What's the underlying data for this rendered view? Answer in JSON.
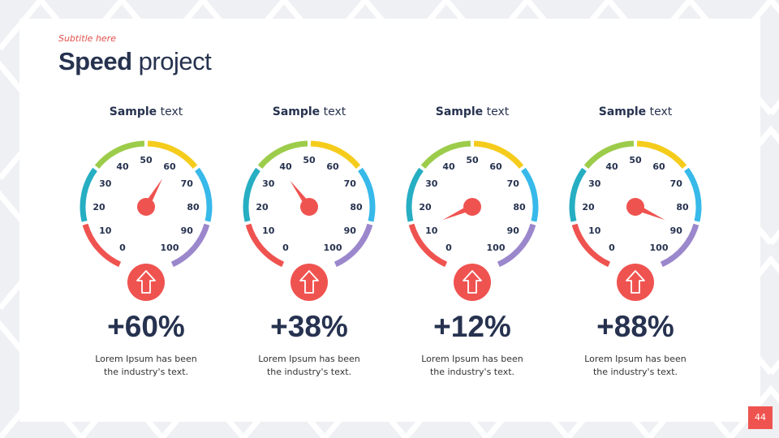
{
  "header": {
    "subtitle": "Subtitle here",
    "title_bold": "Speed",
    "title_light": " project"
  },
  "gauge_scale": [
    "0",
    "10",
    "20",
    "30",
    "40",
    "50",
    "60",
    "70",
    "80",
    "90",
    "100"
  ],
  "segment_colors": [
    "#ef5350",
    "#26aec2",
    "#9ccc4a",
    "#f5cc1c",
    "#37b9ea",
    "#9b87cc"
  ],
  "accent": "#ef5350",
  "gauges": [
    {
      "label_bold": "Sample",
      "label_light": " text",
      "value": 60,
      "percent": "+60%",
      "desc": "Lorem Ipsum has been the industry's text.",
      "icon": "arrow-up-icon"
    },
    {
      "label_bold": "Sample",
      "label_light": " text",
      "value": 38,
      "percent": "+38%",
      "desc": "Lorem Ipsum has been the industry's text.",
      "icon": "arrow-up-icon"
    },
    {
      "label_bold": "Sample",
      "label_light": " text",
      "value": 12,
      "percent": "+12%",
      "desc": "Lorem Ipsum has been the industry's text.",
      "icon": "arrow-up-icon"
    },
    {
      "label_bold": "Sample",
      "label_light": " text",
      "value": 88,
      "percent": "+88%",
      "desc": "Lorem Ipsum has been the industry's text.",
      "icon": "arrow-up-icon"
    }
  ],
  "page_number": "44"
}
